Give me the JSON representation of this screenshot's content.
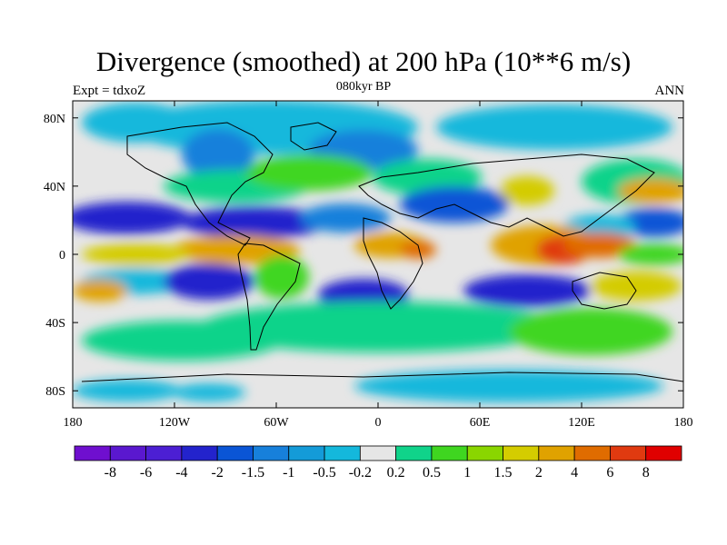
{
  "title": "Divergence (smoothed) at 200 hPa (10**6 m/s)",
  "subtitle": "080kyr BP",
  "left_label": "Expt = tdxoZ",
  "right_label": "ANN",
  "map": {
    "projection": "cylindrical-equidistant",
    "lon_range": [
      -180,
      180
    ],
    "lat_range": [
      -90,
      90
    ],
    "lon_ticks": [
      {
        "value": -180,
        "label": "180"
      },
      {
        "value": -120,
        "label": "120W"
      },
      {
        "value": -60,
        "label": "60W"
      },
      {
        "value": 0,
        "label": "0"
      },
      {
        "value": 60,
        "label": "60E"
      },
      {
        "value": 120,
        "label": "120E"
      },
      {
        "value": 180,
        "label": "180"
      }
    ],
    "lat_ticks": [
      {
        "value": 80,
        "label": "80N"
      },
      {
        "value": 40,
        "label": "40N"
      },
      {
        "value": 0,
        "label": "0"
      },
      {
        "value": -40,
        "label": "40S"
      },
      {
        "value": -80,
        "label": "80S"
      }
    ],
    "land_outline": "black coastlines"
  },
  "colorbar": {
    "labels": [
      "-8",
      "-6",
      "-4",
      "-2",
      "-1.5",
      "-1",
      "-0.5",
      "-0.2",
      "0.2",
      "0.5",
      "1",
      "1.5",
      "2",
      "4",
      "6",
      "8"
    ],
    "colors": [
      "#6f0fcf",
      "#5a18cf",
      "#4c1fd3",
      "#2323cc",
      "#0a55d6",
      "#1780db",
      "#149bd8",
      "#14b8dc",
      "#e6e6e6",
      "#10d38a",
      "#3fd620",
      "#8ad600",
      "#d4cc00",
      "#e0a200",
      "#e06c00",
      "#e03a10",
      "#e00000"
    ]
  }
}
